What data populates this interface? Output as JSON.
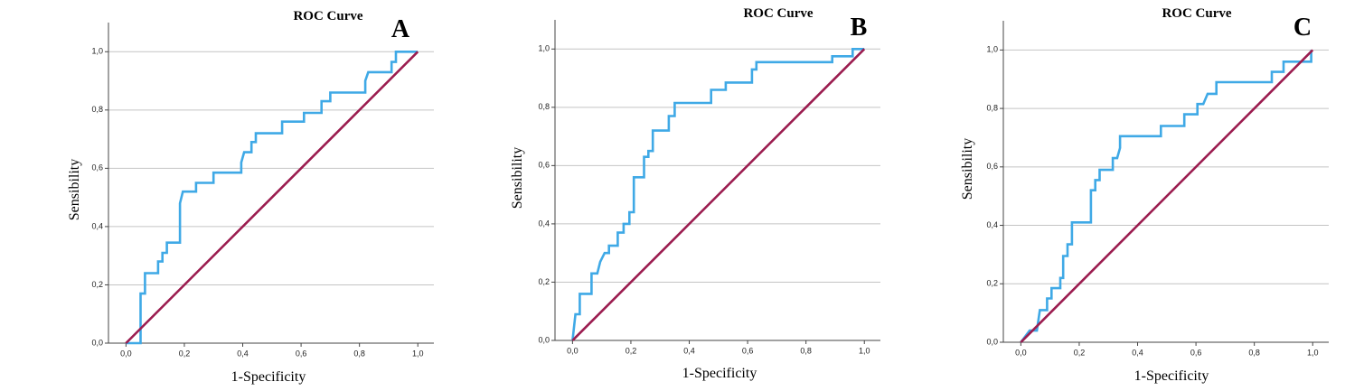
{
  "chart_data": [
    {
      "type": "line",
      "title": "ROC Curve",
      "annotation": "A",
      "xlabel": "1-Specificity",
      "ylabel": "Sensibility",
      "xlim": [
        -0.06,
        1.055
      ],
      "ylim": [
        0,
        1.1
      ],
      "xticks": [
        {
          "value": 0,
          "label": "0,0"
        },
        {
          "value": 0.2,
          "label": "0,2"
        },
        {
          "value": 0.4,
          "label": "0,4"
        },
        {
          "value": 0.6,
          "label": "0,6"
        },
        {
          "value": 0.8,
          "label": "0,8"
        },
        {
          "value": 1,
          "label": "1,0"
        }
      ],
      "yticks": [
        {
          "value": 0,
          "label": "0,0"
        },
        {
          "value": 0.2,
          "label": "0,2"
        },
        {
          "value": 0.4,
          "label": "0,4"
        },
        {
          "value": 0.6,
          "label": "0,6"
        },
        {
          "value": 0.8,
          "label": "0,8"
        },
        {
          "value": 1,
          "label": "1,0"
        }
      ],
      "grid": true,
      "series": [
        {
          "color": "#3fa9e6",
          "x": [
            0,
            0.05,
            0.05,
            0.065,
            0.065,
            0.11,
            0.11,
            0.125,
            0.125,
            0.14,
            0.14,
            0.185,
            0.185,
            0.195,
            0.24,
            0.24,
            0.3,
            0.3,
            0.395,
            0.395,
            0.405,
            0.43,
            0.43,
            0.445,
            0.445,
            0.535,
            0.535,
            0.61,
            0.61,
            0.67,
            0.67,
            0.7,
            0.7,
            0.82,
            0.82,
            0.83,
            0.91,
            0.91,
            0.925,
            0.925,
            1
          ],
          "values": [
            0,
            0,
            0.17,
            0.17,
            0.24,
            0.24,
            0.28,
            0.28,
            0.31,
            0.31,
            0.345,
            0.345,
            0.48,
            0.52,
            0.52,
            0.55,
            0.55,
            0.585,
            0.585,
            0.62,
            0.655,
            0.655,
            0.69,
            0.69,
            0.72,
            0.72,
            0.76,
            0.76,
            0.79,
            0.79,
            0.83,
            0.83,
            0.86,
            0.86,
            0.9,
            0.93,
            0.93,
            0.965,
            0.965,
            1,
            1
          ]
        },
        {
          "color": "#9b1c4f",
          "x": [
            0,
            1
          ],
          "values": [
            0,
            1
          ]
        }
      ]
    },
    {
      "type": "line",
      "title": "ROC Curve",
      "annotation": "B",
      "xlabel": "1-Specificity",
      "ylabel": "Sensibility",
      "xlim": [
        -0.06,
        1.055
      ],
      "ylim": [
        0,
        1.1
      ],
      "xticks": [
        {
          "value": 0,
          "label": "0,0"
        },
        {
          "value": 0.2,
          "label": "0,2"
        },
        {
          "value": 0.4,
          "label": "0,4"
        },
        {
          "value": 0.6,
          "label": "0,6"
        },
        {
          "value": 0.8,
          "label": "0,8"
        },
        {
          "value": 1,
          "label": "1,0"
        }
      ],
      "yticks": [
        {
          "value": 0,
          "label": "0,0"
        },
        {
          "value": 0.2,
          "label": "0,2"
        },
        {
          "value": 0.4,
          "label": "0,4"
        },
        {
          "value": 0.6,
          "label": "0,6"
        },
        {
          "value": 0.8,
          "label": "0,8"
        },
        {
          "value": 1,
          "label": "1,0"
        }
      ],
      "grid": true,
      "series": [
        {
          "color": "#3fa9e6",
          "x": [
            0,
            0.01,
            0.025,
            0.025,
            0.065,
            0.065,
            0.085,
            0.095,
            0.11,
            0.125,
            0.125,
            0.155,
            0.155,
            0.175,
            0.175,
            0.195,
            0.195,
            0.21,
            0.21,
            0.245,
            0.245,
            0.26,
            0.26,
            0.275,
            0.275,
            0.33,
            0.33,
            0.35,
            0.35,
            0.475,
            0.475,
            0.525,
            0.525,
            0.615,
            0.615,
            0.63,
            0.63,
            0.89,
            0.89,
            0.96,
            0.96,
            1
          ],
          "values": [
            0,
            0.09,
            0.09,
            0.16,
            0.16,
            0.23,
            0.23,
            0.27,
            0.3,
            0.3,
            0.325,
            0.325,
            0.37,
            0.37,
            0.4,
            0.4,
            0.44,
            0.44,
            0.56,
            0.56,
            0.63,
            0.63,
            0.65,
            0.65,
            0.72,
            0.72,
            0.77,
            0.77,
            0.815,
            0.815,
            0.86,
            0.86,
            0.885,
            0.885,
            0.93,
            0.93,
            0.955,
            0.955,
            0.975,
            0.975,
            1,
            1
          ]
        },
        {
          "color": "#9b1c4f",
          "x": [
            0,
            1
          ],
          "values": [
            0,
            1
          ]
        }
      ]
    },
    {
      "type": "line",
      "title": "ROC Curve",
      "annotation": "C",
      "xlabel": "1-Specificity",
      "ylabel": "Sensibility",
      "xlim": [
        -0.06,
        1.055
      ],
      "ylim": [
        0,
        1.1
      ],
      "xticks": [
        {
          "value": 0,
          "label": "0,0"
        },
        {
          "value": 0.2,
          "label": "0,2"
        },
        {
          "value": 0.4,
          "label": "0,4"
        },
        {
          "value": 0.6,
          "label": "0,6"
        },
        {
          "value": 0.8,
          "label": "0,8"
        },
        {
          "value": 1,
          "label": "1,0"
        }
      ],
      "yticks": [
        {
          "value": 0,
          "label": "0,0"
        },
        {
          "value": 0.2,
          "label": "0,2"
        },
        {
          "value": 0.4,
          "label": "0,4"
        },
        {
          "value": 0.6,
          "label": "0,6"
        },
        {
          "value": 0.8,
          "label": "0,8"
        },
        {
          "value": 1,
          "label": "1,0"
        }
      ],
      "grid": true,
      "series": [
        {
          "color": "#3fa9e6",
          "x": [
            0,
            0.03,
            0.055,
            0.065,
            0.09,
            0.09,
            0.105,
            0.105,
            0.135,
            0.135,
            0.145,
            0.145,
            0.16,
            0.16,
            0.175,
            0.175,
            0.24,
            0.24,
            0.255,
            0.255,
            0.27,
            0.27,
            0.315,
            0.315,
            0.33,
            0.34,
            0.34,
            0.48,
            0.48,
            0.56,
            0.56,
            0.605,
            0.605,
            0.625,
            0.64,
            0.67,
            0.67,
            0.86,
            0.86,
            0.9,
            0.9,
            0.995,
            0.995
          ],
          "values": [
            0,
            0.04,
            0.04,
            0.11,
            0.11,
            0.15,
            0.15,
            0.185,
            0.185,
            0.22,
            0.22,
            0.295,
            0.295,
            0.335,
            0.335,
            0.41,
            0.41,
            0.52,
            0.52,
            0.555,
            0.555,
            0.59,
            0.59,
            0.63,
            0.63,
            0.665,
            0.705,
            0.705,
            0.74,
            0.74,
            0.78,
            0.78,
            0.815,
            0.815,
            0.85,
            0.85,
            0.89,
            0.89,
            0.925,
            0.925,
            0.96,
            0.96,
            1
          ]
        },
        {
          "color": "#9b1c4f",
          "x": [
            0,
            1
          ],
          "values": [
            0,
            1
          ]
        }
      ]
    }
  ]
}
